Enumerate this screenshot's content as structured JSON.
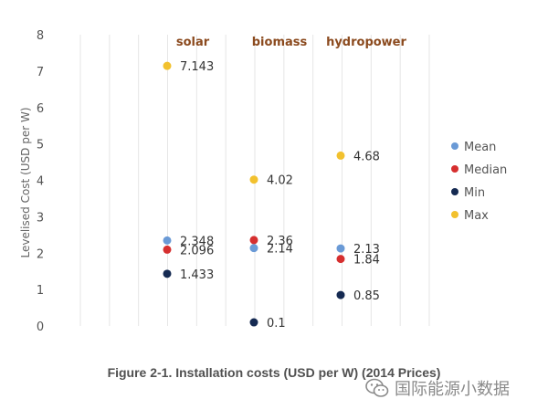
{
  "chart_data": {
    "type": "scatter",
    "title": "",
    "ylabel": "Levelised Cost (USD per W)",
    "xlabel": "",
    "ylim": [
      0,
      8
    ],
    "yticks": [
      0,
      1,
      2,
      3,
      4,
      5,
      6,
      7,
      8
    ],
    "grid": "vertical",
    "legend_position": "right",
    "categories": [
      "solar",
      "biomass",
      "hydropower"
    ],
    "series": [
      {
        "name": "Mean",
        "color": "#6a9ad6",
        "values": [
          2.348,
          2.14,
          2.13
        ]
      },
      {
        "name": "Median",
        "color": "#d62f2f",
        "values": [
          2.096,
          2.36,
          1.84
        ]
      },
      {
        "name": "Min",
        "color": "#152a52",
        "values": [
          1.433,
          0.1,
          0.85
        ]
      },
      {
        "name": "Max",
        "color": "#f2c12e",
        "values": [
          7.143,
          4.02,
          4.68
        ]
      }
    ],
    "point_labels": [
      {
        "category": "solar",
        "series": "Max",
        "text": "7.143"
      },
      {
        "category": "solar",
        "series": "Mean",
        "text": "2.348"
      },
      {
        "category": "solar",
        "series": "Median",
        "text": "2.096"
      },
      {
        "category": "solar",
        "series": "Min",
        "text": "1.433"
      },
      {
        "category": "biomass",
        "series": "Max",
        "text": "4.02"
      },
      {
        "category": "biomass",
        "series": "Median",
        "text": "2.36"
      },
      {
        "category": "biomass",
        "series": "Mean",
        "text": "2.14"
      },
      {
        "category": "biomass",
        "series": "Min",
        "text": "0.1"
      },
      {
        "category": "hydropower",
        "series": "Max",
        "text": "4.68"
      },
      {
        "category": "hydropower",
        "series": "Mean",
        "text": "2.13"
      },
      {
        "category": "hydropower",
        "series": "Median",
        "text": "1.84"
      },
      {
        "category": "hydropower",
        "series": "Min",
        "text": "0.85"
      }
    ],
    "category_label_color": "#8b4a1e"
  },
  "caption": "Figure 2-1. Installation costs (USD per W) (2014 Prices)",
  "watermark": {
    "text": "国际能源小数据",
    "icon": "wechat-icon"
  }
}
